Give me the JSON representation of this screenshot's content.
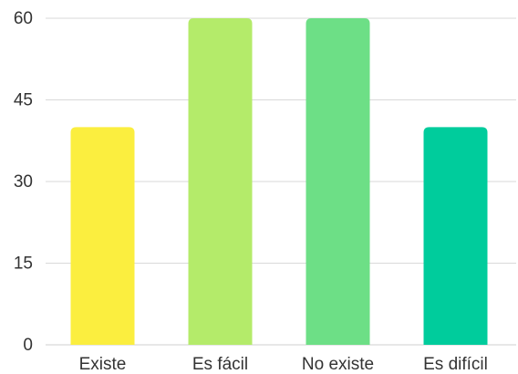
{
  "chart_data": {
    "type": "bar",
    "categories": [
      "Existe",
      "Es fácil",
      "No existe",
      "Es difícil"
    ],
    "values": [
      40,
      60,
      60,
      40
    ],
    "colors": [
      "#fbee3f",
      "#b4eb6a",
      "#6ddf86",
      "#00cc9c"
    ],
    "title": "",
    "xlabel": "",
    "ylabel": "",
    "ylim": [
      0,
      60
    ],
    "yticks": [
      "0",
      "15",
      "30",
      "45",
      "60"
    ],
    "grid": true,
    "legend": "none"
  }
}
